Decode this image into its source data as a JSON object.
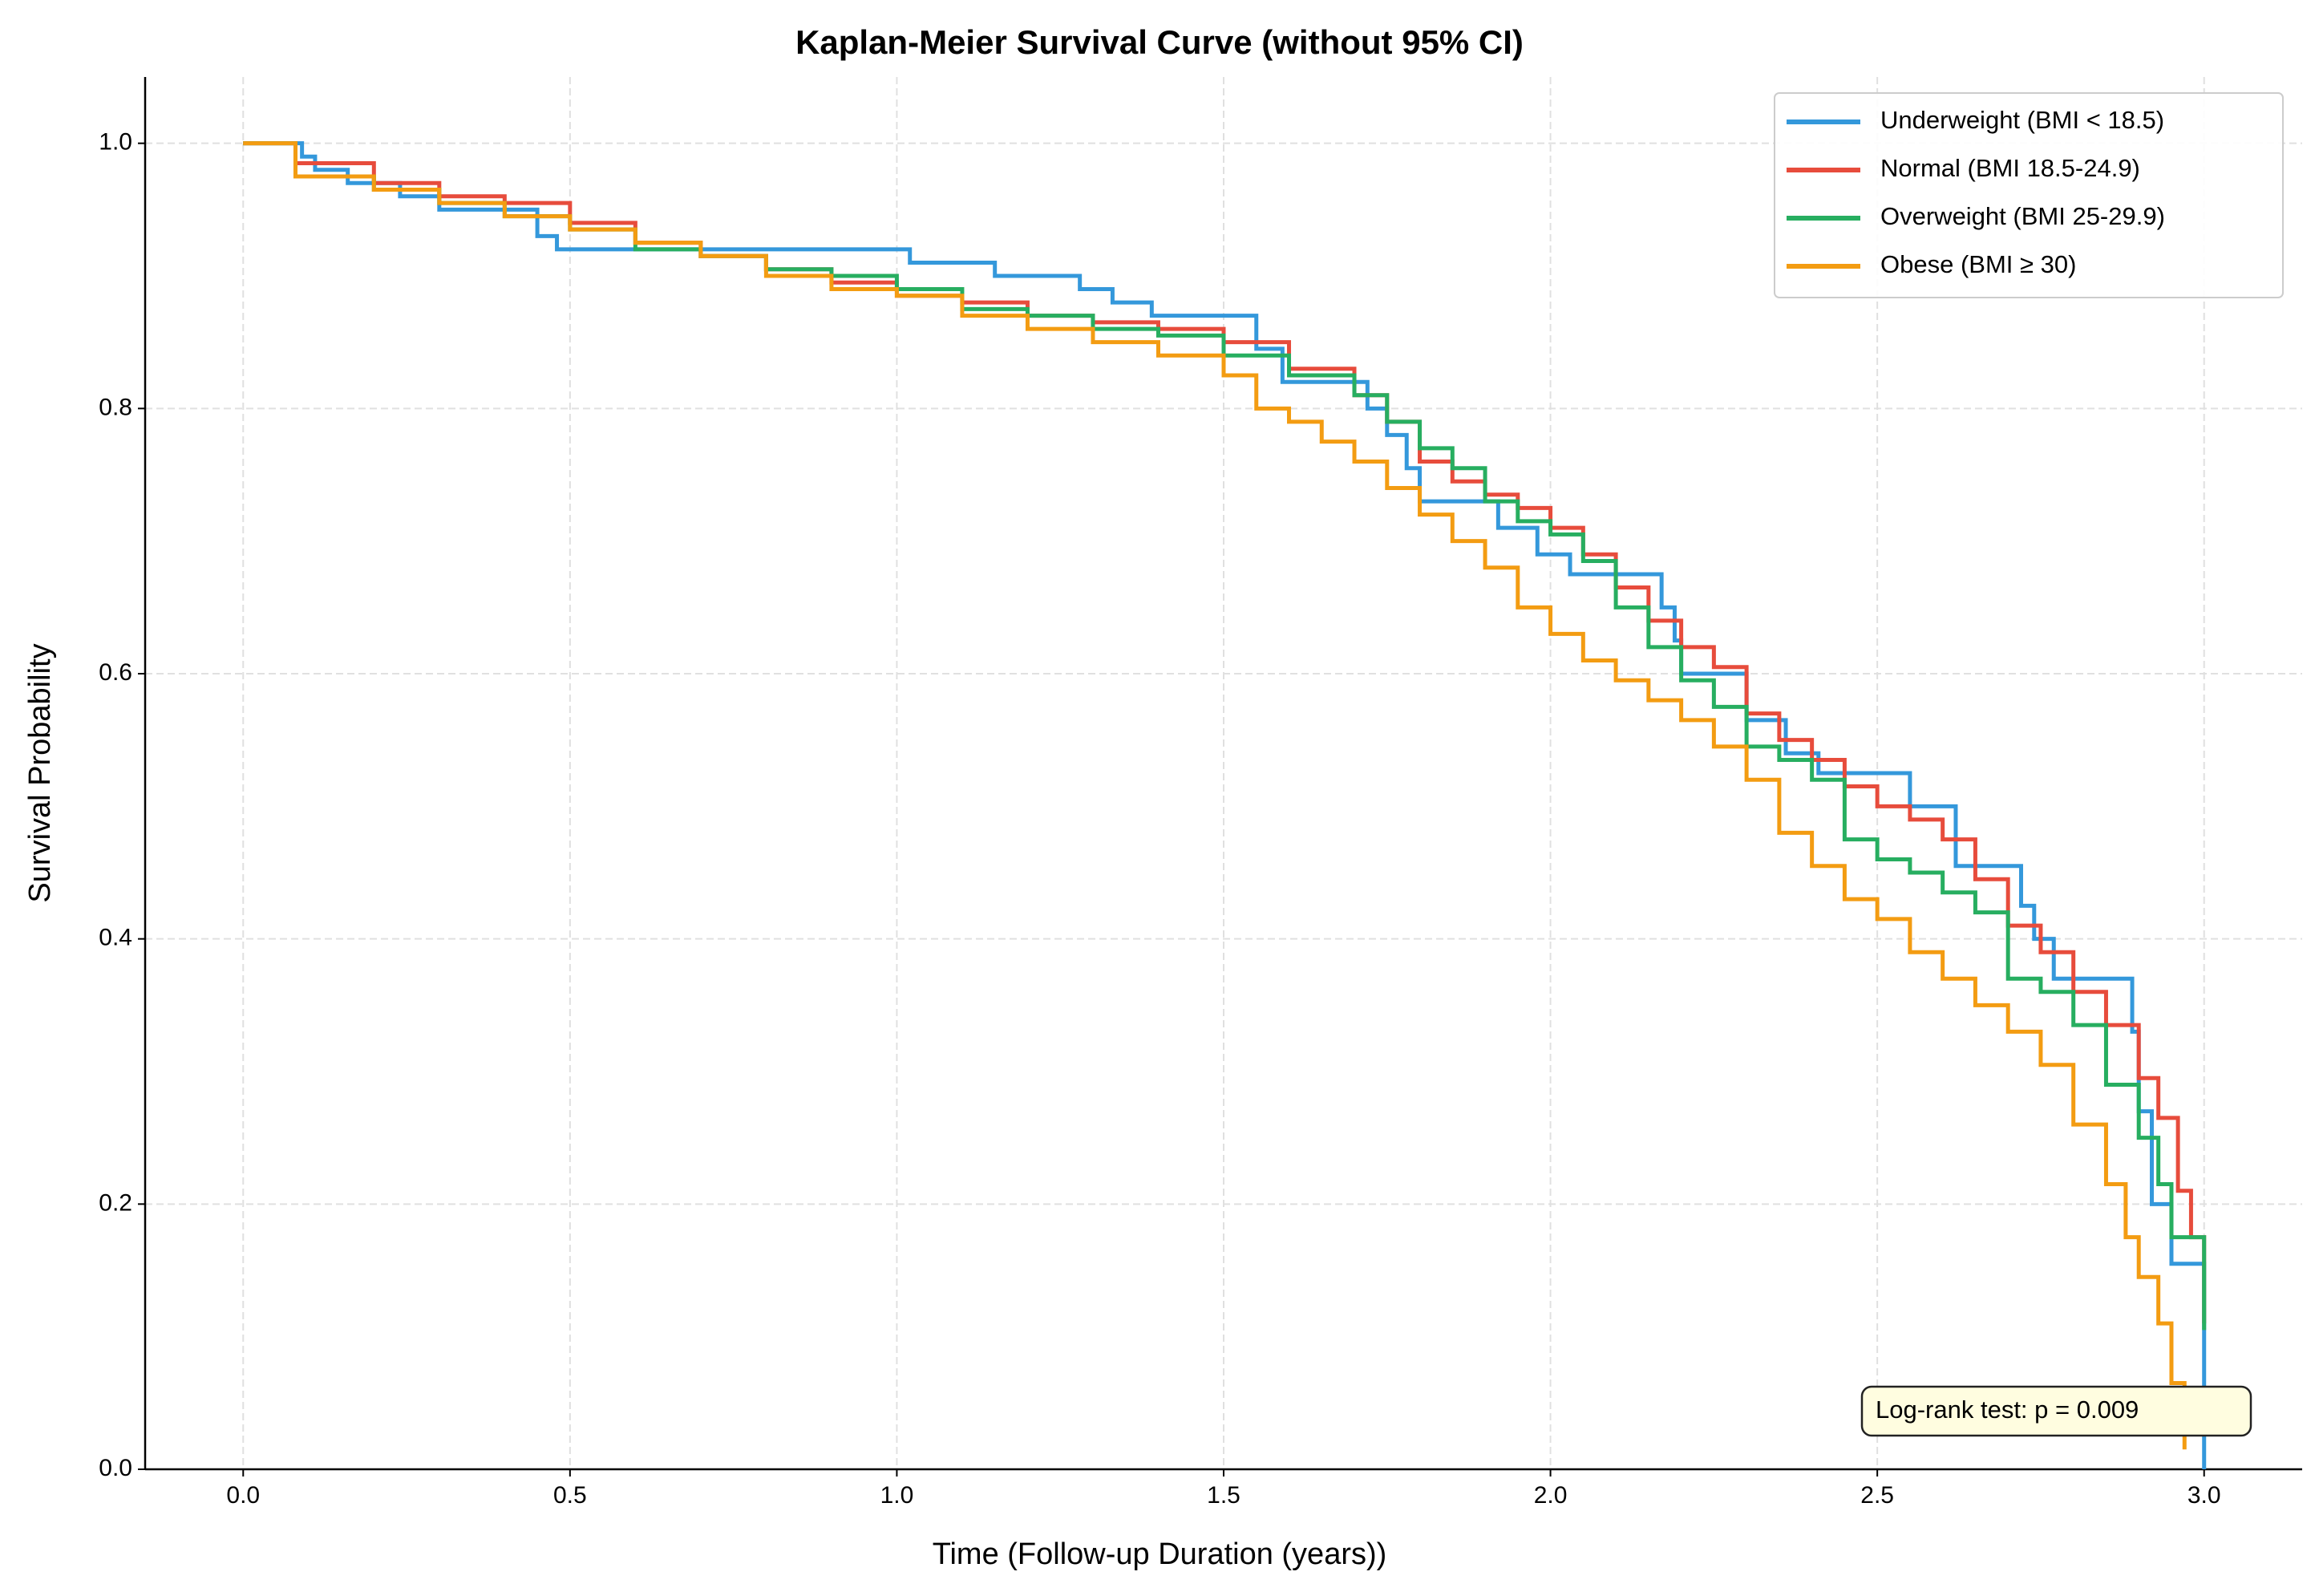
{
  "chart_data": {
    "type": "step",
    "title": "Kaplan-Meier Survival Curve (without 95% CI)",
    "x_label": "Time (Follow-up Duration (years))",
    "y_label": "Survival Probability",
    "annotation": "Log-rank test: p = 0.009",
    "xlim": [
      -0.15,
      3.15
    ],
    "ylim": [
      0,
      1.05
    ],
    "xticks": [
      {
        "value": 0,
        "label": "0.0"
      },
      0.5,
      {
        "value": 1,
        "label": "1.0"
      },
      1.5,
      {
        "value": 2,
        "label": "2.0"
      },
      2.5,
      {
        "value": 3,
        "label": "3.0"
      }
    ],
    "yticks": [
      {
        "value": 0,
        "label": "0.0"
      },
      0.2,
      0.4,
      0.6,
      0.8,
      {
        "value": 1,
        "label": "1.0"
      }
    ],
    "grid": true,
    "legend": "upper right",
    "series": [
      {
        "name": "Underweight (BMI < 18.5)",
        "color": "#3498db",
        "x": [
          0,
          0.09,
          0.11,
          0.16,
          0.24,
          0.3,
          0.45,
          0.48,
          1.02,
          1.15,
          1.28,
          1.33,
          1.39,
          1.55,
          1.59,
          1.72,
          1.75,
          1.78,
          1.8,
          1.92,
          1.98,
          2.03,
          2.17,
          2.19,
          2.2,
          2.3,
          2.36,
          2.41,
          2.55,
          2.62,
          2.72,
          2.74,
          2.77,
          2.89,
          2.9,
          2.92,
          2.95,
          3.0
        ],
        "values": [
          1.0,
          0.99,
          0.98,
          0.97,
          0.96,
          0.95,
          0.93,
          0.92,
          0.91,
          0.9,
          0.89,
          0.88,
          0.87,
          0.845,
          0.82,
          0.8,
          0.78,
          0.755,
          0.73,
          0.71,
          0.69,
          0.675,
          0.65,
          0.625,
          0.6,
          0.565,
          0.54,
          0.525,
          0.5,
          0.455,
          0.425,
          0.4,
          0.37,
          0.33,
          0.27,
          0.2,
          0.155,
          0.0
        ]
      },
      {
        "name": "Normal (BMI 18.5-24.9)",
        "color": "#e74c3c",
        "x": [
          0,
          0.08,
          0.2,
          0.3,
          0.4,
          0.5,
          0.6,
          0.7,
          0.8,
          0.9,
          1.0,
          1.1,
          1.2,
          1.3,
          1.4,
          1.5,
          1.6,
          1.7,
          1.75,
          1.8,
          1.85,
          1.9,
          1.95,
          2.0,
          2.05,
          2.1,
          2.15,
          2.2,
          2.25,
          2.3,
          2.35,
          2.4,
          2.45,
          2.5,
          2.55,
          2.6,
          2.65,
          2.7,
          2.75,
          2.8,
          2.85,
          2.9,
          2.93,
          2.96,
          2.98,
          3.0
        ],
        "values": [
          1.0,
          0.985,
          0.97,
          0.96,
          0.955,
          0.94,
          0.925,
          0.915,
          0.905,
          0.895,
          0.885,
          0.88,
          0.87,
          0.865,
          0.86,
          0.85,
          0.83,
          0.81,
          0.79,
          0.76,
          0.745,
          0.735,
          0.725,
          0.71,
          0.69,
          0.665,
          0.64,
          0.62,
          0.605,
          0.57,
          0.55,
          0.535,
          0.515,
          0.5,
          0.49,
          0.475,
          0.445,
          0.41,
          0.39,
          0.36,
          0.335,
          0.295,
          0.265,
          0.21,
          0.175,
          0.11
        ]
      },
      {
        "name": "Overweight (BMI 25-29.9)",
        "color": "#27ae60",
        "x": [
          0,
          0.08,
          0.2,
          0.3,
          0.4,
          0.5,
          0.6,
          0.7,
          0.8,
          0.9,
          1.0,
          1.1,
          1.2,
          1.3,
          1.4,
          1.5,
          1.6,
          1.7,
          1.75,
          1.8,
          1.85,
          1.9,
          1.95,
          2.0,
          2.05,
          2.1,
          2.15,
          2.2,
          2.25,
          2.3,
          2.35,
          2.4,
          2.45,
          2.5,
          2.55,
          2.6,
          2.65,
          2.7,
          2.75,
          2.8,
          2.85,
          2.9,
          2.93,
          2.95,
          3.0
        ],
        "values": [
          1.0,
          0.975,
          0.965,
          0.955,
          0.945,
          0.935,
          0.92,
          0.915,
          0.905,
          0.9,
          0.89,
          0.875,
          0.87,
          0.86,
          0.855,
          0.84,
          0.825,
          0.81,
          0.79,
          0.77,
          0.755,
          0.73,
          0.715,
          0.705,
          0.685,
          0.65,
          0.62,
          0.595,
          0.575,
          0.545,
          0.535,
          0.52,
          0.475,
          0.46,
          0.45,
          0.435,
          0.42,
          0.37,
          0.36,
          0.335,
          0.29,
          0.25,
          0.215,
          0.175,
          0.105
        ]
      },
      {
        "name": "Obese (BMI ≥ 30)",
        "color": "#f39c12",
        "x": [
          0,
          0.08,
          0.2,
          0.3,
          0.4,
          0.5,
          0.6,
          0.7,
          0.8,
          0.9,
          1.0,
          1.1,
          1.2,
          1.3,
          1.4,
          1.5,
          1.55,
          1.6,
          1.65,
          1.7,
          1.75,
          1.8,
          1.85,
          1.9,
          1.95,
          2.0,
          2.05,
          2.1,
          2.15,
          2.2,
          2.25,
          2.3,
          2.35,
          2.4,
          2.45,
          2.5,
          2.55,
          2.6,
          2.65,
          2.7,
          2.75,
          2.8,
          2.85,
          2.88,
          2.9,
          2.93,
          2.95,
          2.97
        ],
        "values": [
          1.0,
          0.975,
          0.965,
          0.955,
          0.945,
          0.935,
          0.925,
          0.915,
          0.9,
          0.89,
          0.885,
          0.87,
          0.86,
          0.85,
          0.84,
          0.825,
          0.8,
          0.79,
          0.775,
          0.76,
          0.74,
          0.72,
          0.7,
          0.68,
          0.65,
          0.63,
          0.61,
          0.595,
          0.58,
          0.565,
          0.545,
          0.52,
          0.48,
          0.455,
          0.43,
          0.415,
          0.39,
          0.37,
          0.35,
          0.33,
          0.305,
          0.26,
          0.215,
          0.175,
          0.145,
          0.11,
          0.065,
          0.015
        ]
      }
    ]
  }
}
